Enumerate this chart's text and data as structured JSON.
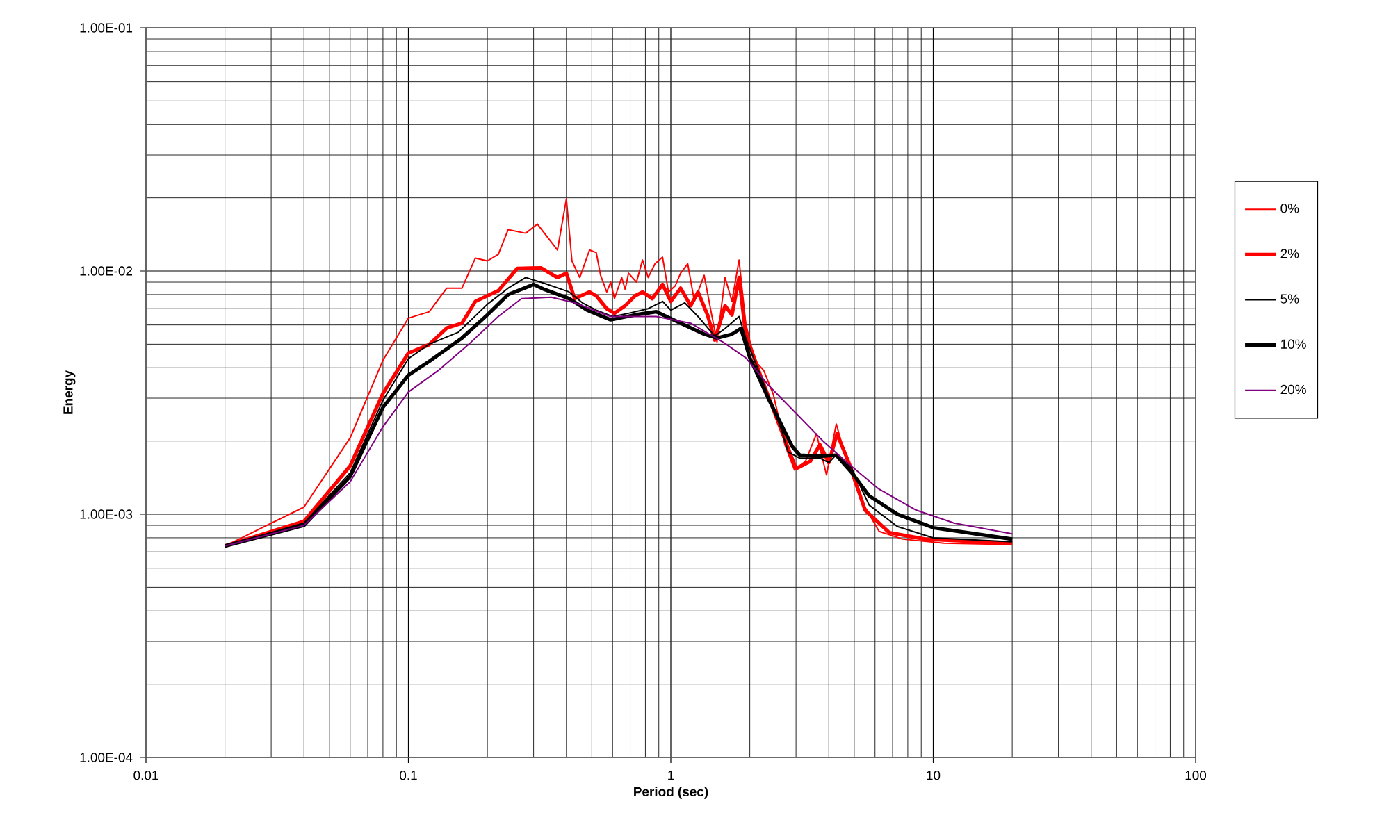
{
  "chart_data": {
    "type": "line",
    "xlabel": "Period (sec)",
    "ylabel": "Energy",
    "log": "xy",
    "grid": true,
    "legend": "right",
    "marker": "none",
    "line_style": "solid",
    "xlim": [
      0.01,
      100
    ],
    "xticks": [
      0.01,
      0.1,
      1,
      10,
      100
    ],
    "ylim": [
      0.0001,
      0.1
    ],
    "yticks": [
      {
        "value": 0.0001,
        "label": "1.00E-04"
      },
      {
        "value": 0.001,
        "label": "1.00E-03"
      },
      {
        "value": 0.01,
        "label": "1.00E-02"
      },
      {
        "value": 0.1,
        "label": "1.00E-01"
      }
    ],
    "series": [
      {
        "name": "0%",
        "color": "#ff0000",
        "x": [
          0.02,
          0.04,
          0.06,
          0.08,
          0.1,
          0.12,
          0.14,
          0.16,
          0.18,
          0.2,
          0.22,
          0.24,
          0.28,
          0.31,
          0.37,
          0.4,
          0.42,
          0.45,
          0.49,
          0.52,
          0.54,
          0.57,
          0.59,
          0.61,
          0.65,
          0.67,
          0.69,
          0.74,
          0.78,
          0.82,
          0.87,
          0.93,
          0.98,
          1.04,
          1.09,
          1.16,
          1.23,
          1.34,
          1.42,
          1.5,
          1.61,
          1.71,
          1.82,
          1.93,
          2.08,
          2.26,
          2.46,
          2.72,
          2.96,
          3.26,
          3.59,
          3.92,
          4.27,
          4.7,
          5.31,
          6.22,
          7.65,
          11,
          20
        ],
        "values": [
          0.00074,
          0.00107,
          0.00206,
          0.0043,
          0.0064,
          0.0068,
          0.0085,
          0.0085,
          0.0113,
          0.011,
          0.0117,
          0.0148,
          0.0143,
          0.0156,
          0.0122,
          0.0198,
          0.011,
          0.0094,
          0.0122,
          0.0119,
          0.0096,
          0.0082,
          0.009,
          0.0077,
          0.0094,
          0.0084,
          0.0098,
          0.009,
          0.0111,
          0.0094,
          0.0107,
          0.0114,
          0.0082,
          0.0087,
          0.0098,
          0.0107,
          0.0075,
          0.0096,
          0.0069,
          0.0051,
          0.0094,
          0.0075,
          0.0111,
          0.0061,
          0.0043,
          0.0039,
          0.0031,
          0.00193,
          0.00152,
          0.00165,
          0.00214,
          0.00145,
          0.00235,
          0.00163,
          0.00114,
          0.00085,
          0.00079,
          0.00076,
          0.00075
        ]
      },
      {
        "name": "2%",
        "color": "#ff0000",
        "x": [
          0.02,
          0.04,
          0.06,
          0.08,
          0.1,
          0.12,
          0.14,
          0.16,
          0.18,
          0.22,
          0.26,
          0.32,
          0.37,
          0.4,
          0.43,
          0.49,
          0.52,
          0.57,
          0.61,
          0.67,
          0.73,
          0.78,
          0.85,
          0.93,
          1.0,
          1.09,
          1.19,
          1.27,
          1.38,
          1.47,
          1.61,
          1.71,
          1.82,
          1.93,
          2.2,
          2.6,
          3.0,
          3.4,
          3.7,
          4.0,
          4.3,
          4.8,
          5.5,
          6.8,
          9.3,
          20
        ],
        "values": [
          0.00074,
          0.000935,
          0.00158,
          0.00314,
          0.0046,
          0.00498,
          0.00583,
          0.0061,
          0.0075,
          0.0083,
          0.01025,
          0.0103,
          0.0094,
          0.0098,
          0.0077,
          0.0082,
          0.0079,
          0.007,
          0.0067,
          0.0072,
          0.0079,
          0.0082,
          0.0077,
          0.0088,
          0.0075,
          0.0085,
          0.0072,
          0.0082,
          0.0066,
          0.0052,
          0.0072,
          0.0066,
          0.0094,
          0.0055,
          0.0037,
          0.0023,
          0.00154,
          0.00165,
          0.00193,
          0.00163,
          0.00214,
          0.0016,
          0.00104,
          0.00084,
          0.00079,
          0.00076
        ]
      },
      {
        "name": "5%",
        "color": "#000000",
        "x": [
          0.02,
          0.04,
          0.06,
          0.08,
          0.1,
          0.12,
          0.155,
          0.2,
          0.24,
          0.28,
          0.33,
          0.41,
          0.46,
          0.52,
          0.6,
          0.69,
          0.82,
          0.93,
          1.0,
          1.13,
          1.27,
          1.47,
          1.61,
          1.82,
          1.93,
          2.2,
          2.65,
          2.8,
          3.1,
          3.7,
          4.0,
          4.3,
          4.9,
          5.7,
          7.3,
          10,
          20
        ],
        "values": [
          0.00074,
          0.00092,
          0.00148,
          0.00294,
          0.00436,
          0.005,
          0.0056,
          0.0073,
          0.0085,
          0.0094,
          0.0089,
          0.0082,
          0.0074,
          0.0069,
          0.0065,
          0.0067,
          0.007,
          0.0075,
          0.0069,
          0.0074,
          0.0065,
          0.0054,
          0.0058,
          0.0065,
          0.0053,
          0.0037,
          0.0022,
          0.0018,
          0.0017,
          0.0017,
          0.00163,
          0.00177,
          0.00154,
          0.00109,
          0.00089,
          0.0008,
          0.00077
        ]
      },
      {
        "name": "10%",
        "color": "#000000",
        "x": [
          0.02,
          0.04,
          0.06,
          0.08,
          0.1,
          0.12,
          0.16,
          0.2,
          0.24,
          0.3,
          0.33,
          0.41,
          0.48,
          0.59,
          0.73,
          0.88,
          1.09,
          1.34,
          1.5,
          1.71,
          1.85,
          2.0,
          2.35,
          2.9,
          3.1,
          3.7,
          4.27,
          4.9,
          5.7,
          7.3,
          10,
          20
        ],
        "values": [
          0.00074,
          0.0009,
          0.00143,
          0.00275,
          0.00373,
          0.00425,
          0.0053,
          0.0066,
          0.008,
          0.0088,
          0.0084,
          0.0077,
          0.0069,
          0.0063,
          0.0066,
          0.0068,
          0.0061,
          0.0055,
          0.0053,
          0.0055,
          0.0058,
          0.0044,
          0.003,
          0.0019,
          0.00175,
          0.00173,
          0.00175,
          0.00148,
          0.00119,
          0.001,
          0.00088,
          0.00079
        ]
      },
      {
        "name": "20%",
        "color": "#800080",
        "x": [
          0.02,
          0.04,
          0.06,
          0.08,
          0.1,
          0.13,
          0.17,
          0.22,
          0.27,
          0.35,
          0.43,
          0.59,
          0.88,
          1.19,
          1.58,
          1.93,
          2.35,
          3.0,
          3.8,
          4.7,
          6.2,
          8.6,
          12,
          20
        ],
        "values": [
          0.00074,
          0.0009,
          0.00136,
          0.00229,
          0.00318,
          0.0039,
          0.005,
          0.0065,
          0.0077,
          0.0078,
          0.0074,
          0.0065,
          0.0065,
          0.0061,
          0.0051,
          0.0044,
          0.0034,
          0.0026,
          0.002,
          0.00163,
          0.00127,
          0.00104,
          0.00092,
          0.00083
        ]
      }
    ]
  }
}
